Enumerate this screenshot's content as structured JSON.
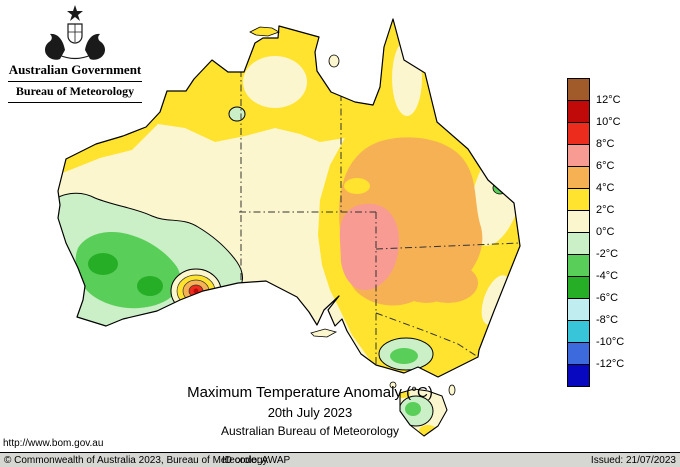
{
  "header": {
    "government": "Australian Government",
    "agency": "Bureau of Meteorology"
  },
  "map": {
    "title": "Maximum Temperature Anomaly (°C)",
    "date": "20th July 2023",
    "attribution": "Australian Bureau of Meteorology",
    "url": "http://www.bom.gov.au"
  },
  "legend": {
    "unit": "°C",
    "labels": [
      "12°C",
      "10°C",
      "8°C",
      "6°C",
      "4°C",
      "2°C",
      "0°C",
      "-2°C",
      "-4°C",
      "-6°C",
      "-8°C",
      "-10°C",
      "-12°C"
    ],
    "colors": [
      "#A15A2A",
      "#C00A0A",
      "#EC2C1C",
      "#F79B93",
      "#F7B155",
      "#FFE32E",
      "#FBF6CE",
      "#CBEFC6",
      "#59CE59",
      "#27AE27",
      "#BFEDF0",
      "#38C5DA",
      "#3D6BDE",
      "#0808C0"
    ]
  },
  "footer": {
    "copyright": "© Commonwealth of Australia 2023, Bureau of Meteorology",
    "id_code": "ID code: AWAP",
    "issued": "Issued: 21/07/2023"
  }
}
